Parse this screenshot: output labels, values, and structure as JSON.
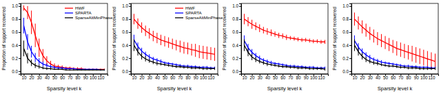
{
  "chart_data": [
    {
      "type": "line",
      "xlabel": "Sparsity level k",
      "ylabel": "Proportion of support recovered",
      "x": [
        10,
        15,
        20,
        25,
        30,
        35,
        40,
        45,
        50,
        55,
        60,
        65,
        70,
        75,
        80,
        85,
        90,
        95,
        100,
        105,
        110,
        115
      ],
      "xlim": [
        6,
        119
      ],
      "xticks": [
        10,
        20,
        30,
        40,
        50,
        60,
        70,
        80,
        90,
        100,
        110
      ],
      "ylim": [
        -0.04,
        1.04
      ],
      "yticks": [
        {
          "value": 0,
          "label": "0.0"
        },
        0.2,
        0.4,
        0.6,
        0.8,
        {
          "value": 1,
          "label": "1.0"
        }
      ],
      "legend": "top-right",
      "series": [
        {
          "name": "HWF",
          "color": "#ff0000",
          "values": [
            0.97,
            0.9,
            0.75,
            0.55,
            0.36,
            0.24,
            0.16,
            0.11,
            0.08,
            0.07,
            0.06,
            0.05,
            0.05,
            0.04,
            0.04,
            0.04,
            0.03,
            0.03,
            0.03,
            0.03,
            0.03,
            0.03
          ],
          "errors": [
            0.04,
            0.1,
            0.18,
            0.18,
            0.14,
            0.1,
            0.07,
            0.05,
            0.04,
            0.03,
            0.03,
            0.02,
            0.02,
            0.02,
            0.02,
            0.02,
            0.01,
            0.01,
            0.01,
            0.01,
            0.01,
            0.01
          ]
        },
        {
          "name": "SPARTA",
          "color": "#0000ff",
          "values": [
            0.7,
            0.45,
            0.3,
            0.21,
            0.15,
            0.11,
            0.09,
            0.07,
            0.06,
            0.05,
            0.05,
            0.04,
            0.04,
            0.04,
            0.03,
            0.03,
            0.03,
            0.03,
            0.03,
            0.03,
            0.02,
            0.02
          ],
          "errors": [
            0.12,
            0.12,
            0.09,
            0.07,
            0.05,
            0.04,
            0.03,
            0.03,
            0.02,
            0.02,
            0.02,
            0.02,
            0.01,
            0.01,
            0.01,
            0.01,
            0.01,
            0.01,
            0.01,
            0.01,
            0.01,
            0.01
          ]
        },
        {
          "name": "SparseAltMinPhase",
          "color": "#000000",
          "values": [
            0.35,
            0.2,
            0.13,
            0.09,
            0.07,
            0.05,
            0.04,
            0.04,
            0.03,
            0.03,
            0.03,
            0.02,
            0.02,
            0.02,
            0.02,
            0.02,
            0.02,
            0.02,
            0.02,
            0.02,
            0.02,
            0.02
          ],
          "errors": [
            0.12,
            0.08,
            0.05,
            0.04,
            0.03,
            0.02,
            0.02,
            0.02,
            0.01,
            0.01,
            0.01,
            0.01,
            0.01,
            0.01,
            0.01,
            0.01,
            0.01,
            0.01,
            0.01,
            0.01,
            0.01,
            0.01
          ]
        }
      ]
    },
    {
      "type": "line",
      "xlabel": "Sparsity level k",
      "ylabel": "Proportion of support recovered",
      "x": [
        10,
        15,
        20,
        25,
        30,
        35,
        40,
        45,
        50,
        55,
        60,
        65,
        70,
        75,
        80,
        85,
        90,
        95,
        100,
        105,
        110,
        115
      ],
      "xlim": [
        6,
        119
      ],
      "xticks": [
        10,
        20,
        30,
        40,
        50,
        60,
        70,
        80,
        90,
        100,
        110
      ],
      "ylim": [
        -0.04,
        1.04
      ],
      "yticks": [
        {
          "value": 0,
          "label": "0.0"
        },
        0.2,
        0.4,
        0.6,
        0.8,
        {
          "value": 1,
          "label": "1.0"
        }
      ],
      "legend": "top-right",
      "series": [
        {
          "name": "HWF",
          "color": "#ff0000",
          "values": [
            0.8,
            0.73,
            0.67,
            0.62,
            0.58,
            0.54,
            0.51,
            0.48,
            0.46,
            0.44,
            0.42,
            0.4,
            0.38,
            0.36,
            0.35,
            0.33,
            0.32,
            0.3,
            0.29,
            0.28,
            0.27,
            0.26
          ],
          "errors": [
            0.08,
            0.08,
            0.08,
            0.08,
            0.08,
            0.08,
            0.08,
            0.08,
            0.08,
            0.08,
            0.08,
            0.08,
            0.09,
            0.09,
            0.09,
            0.09,
            0.1,
            0.1,
            0.1,
            0.1,
            0.1,
            0.1
          ]
        },
        {
          "name": "SPARTA",
          "color": "#0000ff",
          "values": [
            0.48,
            0.38,
            0.31,
            0.26,
            0.22,
            0.19,
            0.17,
            0.15,
            0.13,
            0.12,
            0.11,
            0.1,
            0.09,
            0.08,
            0.08,
            0.07,
            0.07,
            0.06,
            0.06,
            0.06,
            0.05,
            0.05
          ],
          "errors": [
            0.08,
            0.06,
            0.05,
            0.04,
            0.04,
            0.03,
            0.03,
            0.03,
            0.02,
            0.02,
            0.02,
            0.02,
            0.02,
            0.02,
            0.02,
            0.02,
            0.02,
            0.02,
            0.02,
            0.02,
            0.02,
            0.02
          ]
        },
        {
          "name": "SparseAltMinPhase",
          "color": "#000000",
          "values": [
            0.4,
            0.3,
            0.23,
            0.19,
            0.16,
            0.14,
            0.12,
            0.11,
            0.1,
            0.09,
            0.08,
            0.07,
            0.07,
            0.06,
            0.06,
            0.05,
            0.05,
            0.05,
            0.04,
            0.04,
            0.04,
            0.04
          ],
          "errors": [
            0.09,
            0.06,
            0.05,
            0.04,
            0.03,
            0.03,
            0.03,
            0.02,
            0.02,
            0.02,
            0.02,
            0.02,
            0.02,
            0.02,
            0.02,
            0.02,
            0.02,
            0.02,
            0.02,
            0.02,
            0.02,
            0.02
          ]
        }
      ]
    },
    {
      "type": "line",
      "xlabel": "Sparsity level k",
      "ylabel": "Proportion of support recovered",
      "x": [
        10,
        15,
        20,
        25,
        30,
        35,
        40,
        45,
        50,
        55,
        60,
        65,
        70,
        75,
        80,
        85,
        90,
        95,
        100,
        105,
        110,
        115
      ],
      "xlim": [
        6,
        119
      ],
      "xticks": [
        10,
        20,
        30,
        40,
        50,
        60,
        70,
        80,
        90,
        100,
        110
      ],
      "ylim": [
        -0.04,
        1.04
      ],
      "yticks": [
        {
          "value": 0,
          "label": "0.0"
        },
        0.2,
        0.4,
        0.6,
        0.8,
        {
          "value": 1,
          "label": "1.0"
        }
      ],
      "series": [
        {
          "color": "#ff0000",
          "values": [
            0.8,
            0.76,
            0.72,
            0.69,
            0.66,
            0.63,
            0.61,
            0.59,
            0.57,
            0.55,
            0.54,
            0.52,
            0.51,
            0.5,
            0.49,
            0.48,
            0.48,
            0.47,
            0.46,
            0.46,
            0.45,
            0.45
          ],
          "errors": [
            0.08,
            0.07,
            0.07,
            0.06,
            0.06,
            0.05,
            0.05,
            0.05,
            0.04,
            0.04,
            0.04,
            0.04,
            0.03,
            0.03,
            0.03,
            0.03,
            0.03,
            0.03,
            0.03,
            0.03,
            0.03,
            0.03
          ]
        },
        {
          "color": "#0000ff",
          "values": [
            0.47,
            0.36,
            0.29,
            0.24,
            0.2,
            0.17,
            0.15,
            0.13,
            0.12,
            0.11,
            0.1,
            0.09,
            0.08,
            0.08,
            0.07,
            0.07,
            0.06,
            0.06,
            0.06,
            0.05,
            0.05,
            0.05
          ],
          "errors": [
            0.08,
            0.06,
            0.05,
            0.04,
            0.04,
            0.03,
            0.03,
            0.03,
            0.02,
            0.02,
            0.02,
            0.02,
            0.02,
            0.02,
            0.02,
            0.02,
            0.02,
            0.02,
            0.02,
            0.02,
            0.02,
            0.02
          ]
        },
        {
          "color": "#000000",
          "values": [
            0.4,
            0.29,
            0.22,
            0.18,
            0.15,
            0.13,
            0.11,
            0.1,
            0.09,
            0.08,
            0.07,
            0.07,
            0.06,
            0.06,
            0.05,
            0.05,
            0.05,
            0.04,
            0.04,
            0.04,
            0.04,
            0.03
          ],
          "errors": [
            0.09,
            0.06,
            0.05,
            0.04,
            0.03,
            0.03,
            0.03,
            0.02,
            0.02,
            0.02,
            0.02,
            0.02,
            0.02,
            0.02,
            0.02,
            0.02,
            0.02,
            0.02,
            0.02,
            0.02,
            0.02,
            0.02
          ]
        }
      ]
    },
    {
      "type": "line",
      "xlabel": "Sparsity level k",
      "ylabel": "Proportion of support recovered",
      "x": [
        10,
        15,
        20,
        25,
        30,
        35,
        40,
        45,
        50,
        55,
        60,
        65,
        70,
        75,
        80,
        85,
        90,
        95,
        100,
        105,
        110,
        115
      ],
      "xlim": [
        6,
        119
      ],
      "xticks": [
        10,
        20,
        30,
        40,
        50,
        60,
        70,
        80,
        90,
        100,
        110
      ],
      "ylim": [
        -0.04,
        1.04
      ],
      "yticks": [
        {
          "value": 0,
          "label": "0.0"
        },
        0.2,
        0.4,
        0.6,
        0.8,
        {
          "value": 1,
          "label": "1.0"
        }
      ],
      "series": [
        {
          "color": "#ff0000",
          "values": [
            0.8,
            0.74,
            0.68,
            0.63,
            0.58,
            0.54,
            0.5,
            0.47,
            0.44,
            0.41,
            0.38,
            0.35,
            0.33,
            0.31,
            0.29,
            0.27,
            0.25,
            0.23,
            0.21,
            0.19,
            0.17,
            0.15
          ],
          "errors": [
            0.1,
            0.1,
            0.1,
            0.1,
            0.1,
            0.1,
            0.1,
            0.1,
            0.1,
            0.1,
            0.1,
            0.11,
            0.11,
            0.11,
            0.11,
            0.12,
            0.12,
            0.12,
            0.12,
            0.12,
            0.12,
            0.12
          ]
        },
        {
          "color": "#0000ff",
          "values": [
            0.47,
            0.37,
            0.3,
            0.25,
            0.21,
            0.18,
            0.16,
            0.14,
            0.13,
            0.12,
            0.11,
            0.1,
            0.09,
            0.08,
            0.08,
            0.07,
            0.07,
            0.06,
            0.06,
            0.06,
            0.05,
            0.05
          ],
          "errors": [
            0.08,
            0.06,
            0.05,
            0.04,
            0.04,
            0.03,
            0.03,
            0.03,
            0.02,
            0.02,
            0.02,
            0.02,
            0.02,
            0.02,
            0.02,
            0.02,
            0.02,
            0.02,
            0.02,
            0.02,
            0.02,
            0.02
          ]
        },
        {
          "color": "#000000",
          "values": [
            0.4,
            0.3,
            0.23,
            0.18,
            0.15,
            0.13,
            0.12,
            0.1,
            0.09,
            0.08,
            0.08,
            0.07,
            0.06,
            0.06,
            0.05,
            0.05,
            0.05,
            0.04,
            0.04,
            0.04,
            0.04,
            0.04
          ],
          "errors": [
            0.09,
            0.06,
            0.05,
            0.04,
            0.03,
            0.03,
            0.03,
            0.02,
            0.02,
            0.02,
            0.02,
            0.02,
            0.02,
            0.02,
            0.02,
            0.02,
            0.02,
            0.02,
            0.02,
            0.02,
            0.02,
            0.02
          ]
        }
      ]
    }
  ]
}
